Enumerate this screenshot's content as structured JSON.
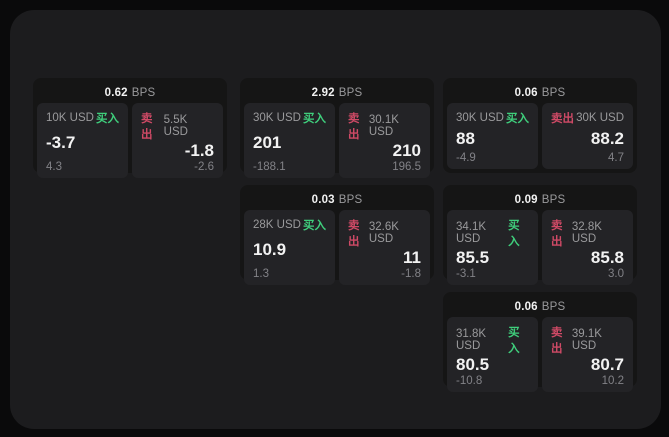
{
  "colors": {
    "outer_bg": "#0a0a0b",
    "panel_bg": "#1c1c1e",
    "card_bg": "#151515",
    "tile_bg": "#232326",
    "text_primary": "#f2f2f2",
    "text_label": "#9a9a9c",
    "text_dim": "#828287",
    "buy_green": "#3fce7c",
    "sell_red": "#cf4a66"
  },
  "labels": {
    "bps_unit": "BPS",
    "buy": "买入",
    "sell": "卖出"
  },
  "cards": [
    {
      "bps": "0.62",
      "col": 1,
      "row": 1,
      "buy": {
        "amount": "10K USD",
        "value": "-3.7",
        "delta": "4.3"
      },
      "sell": {
        "amount": "5.5K USD",
        "value": "-1.8",
        "delta": "-2.6"
      }
    },
    {
      "bps": "2.92",
      "col": 2,
      "row": 1,
      "buy": {
        "amount": "30K USD",
        "value": "201",
        "delta": "-188.1"
      },
      "sell": {
        "amount": "30.1K USD",
        "value": "210",
        "delta": "196.5"
      }
    },
    {
      "bps": "0.06",
      "col": 3,
      "row": 1,
      "buy": {
        "amount": "30K USD",
        "value": "88",
        "delta": "-4.9"
      },
      "sell": {
        "amount": "30K USD",
        "value": "88.2",
        "delta": "4.7"
      }
    },
    {
      "bps": "0.03",
      "col": 2,
      "row": 2,
      "buy": {
        "amount": "28K USD",
        "value": "10.9",
        "delta": "1.3"
      },
      "sell": {
        "amount": "32.6K USD",
        "value": "11",
        "delta": "-1.8"
      }
    },
    {
      "bps": "0.09",
      "col": 3,
      "row": 2,
      "buy": {
        "amount": "34.1K USD",
        "value": "85.5",
        "delta": "-3.1"
      },
      "sell": {
        "amount": "32.8K USD",
        "value": "85.8",
        "delta": "3.0"
      }
    },
    {
      "bps": "0.06",
      "col": 3,
      "row": 3,
      "buy": {
        "amount": "31.8K USD",
        "value": "80.5",
        "delta": "-10.8"
      },
      "sell": {
        "amount": "39.1K USD",
        "value": "80.7",
        "delta": "10.2"
      }
    }
  ]
}
